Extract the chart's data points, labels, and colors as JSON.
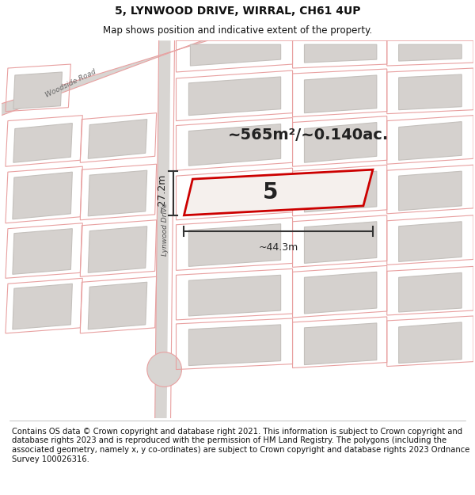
{
  "title_line1": "5, LYNWOOD DRIVE, WIRRAL, CH61 4UP",
  "title_line2": "Map shows position and indicative extent of the property.",
  "area_text": "~565m²/~0.140ac.",
  "label_number": "5",
  "dim_width": "~44.3m",
  "dim_height": "~27.2m",
  "road_label": "Lynwood Drive",
  "road_label2": "Woodside Road",
  "footer_text": "Contains OS data © Crown copyright and database right 2021. This information is subject to Crown copyright and database rights 2023 and is reproduced with the permission of HM Land Registry. The polygons (including the associated geometry, namely x, y co-ordinates) are subject to Crown copyright and database rights 2023 Ordnance Survey 100026316.",
  "map_bg": "#eeecea",
  "plot_fill": "#f2eeeb",
  "plot_edge": "#cc0000",
  "pink_line_color": "#e8a0a0",
  "building_fill": "#d5d1ce",
  "building_edge": "#c4c0bc",
  "road_fill": "#d8d5d2",
  "title_fontsize": 10,
  "subtitle_fontsize": 8.5,
  "footer_fontsize": 7.2,
  "area_fontsize": 14,
  "label_fontsize": 20,
  "dim_fontsize": 9
}
